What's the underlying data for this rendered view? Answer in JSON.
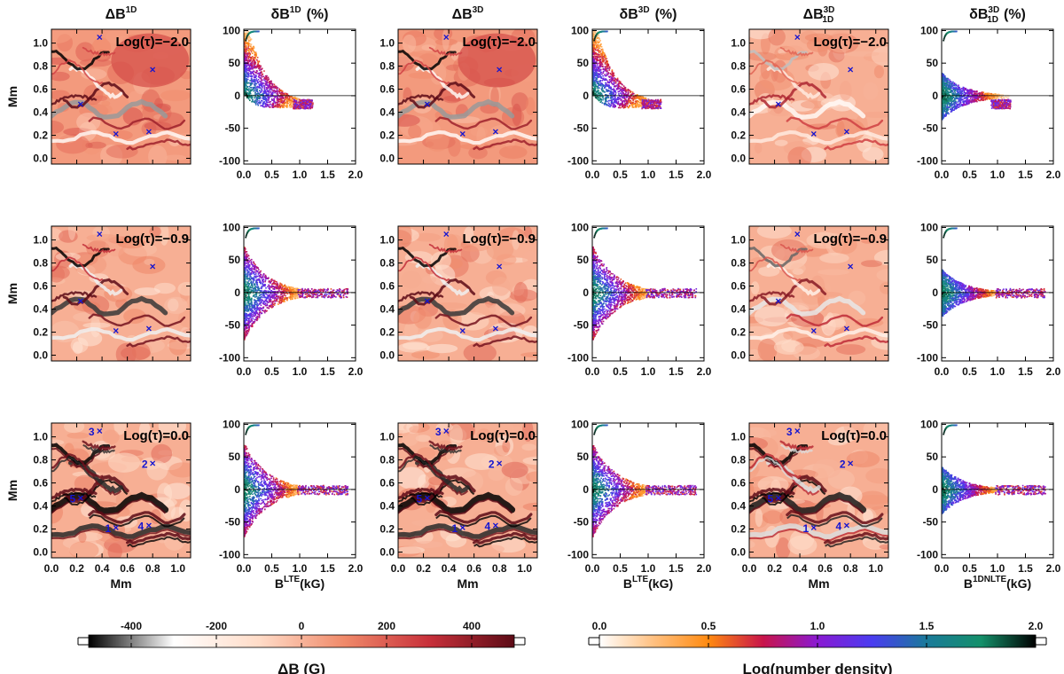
{
  "chart_data": {
    "type": "figure-grid",
    "rows": [
      {
        "tau_label": "Log(τ)=−2.0"
      },
      {
        "tau_label": "Log(τ)=−0.9"
      },
      {
        "tau_label": "Log(τ)=0.0"
      }
    ],
    "columns": [
      {
        "kind": "map",
        "title_main": "ΔB",
        "title_sup": "1D",
        "title_sub": ""
      },
      {
        "kind": "scatter",
        "title_main": "δB",
        "title_sup": "1D",
        "title_sub": "",
        "title_tail": "(%)",
        "xlabel_main": "B",
        "xlabel_sup": "LTE",
        "xlabel_tail": "(kG)"
      },
      {
        "kind": "map",
        "title_main": "ΔB",
        "title_sup": "3D",
        "title_sub": ""
      },
      {
        "kind": "scatter",
        "title_main": "δB",
        "title_sup": "3D",
        "title_sub": "",
        "title_tail": "(%)",
        "xlabel_main": "B",
        "xlabel_sup": "LTE",
        "xlabel_tail": "(kG)"
      },
      {
        "kind": "map",
        "title_main": "ΔB",
        "title_sup": "3D",
        "title_sub": "1D",
        "title_tail": ""
      },
      {
        "kind": "scatter",
        "title_main": "δB",
        "title_sup": "3D",
        "title_sub": "1D",
        "title_tail": "(%)",
        "xlabel_main": "B",
        "xlabel_sup": "1DNLTE",
        "xlabel_tail": "(kG)"
      }
    ],
    "map_axes": {
      "xlabel": "Mm",
      "ylabel": "Mm",
      "xlim": [
        0.0,
        1.1
      ],
      "ylim": [
        -0.05,
        1.12
      ],
      "xticks": [
        "0.0",
        "0.2",
        "0.4",
        "0.6",
        "0.8",
        "1.0"
      ],
      "yticks": [
        "0.0",
        "0.2",
        "0.4",
        "0.6",
        "0.8",
        "1.0"
      ],
      "yvals": [
        0.0,
        0.2,
        0.4,
        0.6,
        0.8,
        1.0
      ]
    },
    "scatter_axes": {
      "xlim": [
        0.0,
        2.0
      ],
      "ylim": [
        -105,
        102
      ],
      "xticks": [
        "0.0",
        "0.5",
        "1.0",
        "1.5",
        "2.0"
      ],
      "xvals": [
        0.0,
        0.5,
        1.0,
        1.5,
        2.0
      ],
      "yticks": [
        "100",
        "50",
        "0",
        "-50",
        "-100"
      ],
      "yvals": [
        100,
        50,
        0,
        -50,
        -100
      ],
      "zero_line": 0
    },
    "marked_points": [
      {
        "label": "1",
        "x": 0.51,
        "y": 0.21
      },
      {
        "label": "2",
        "x": 0.8,
        "y": 0.77
      },
      {
        "label": "3",
        "x": 0.38,
        "y": 1.05
      },
      {
        "label": "4",
        "x": 0.77,
        "y": 0.23
      },
      {
        "label": "5",
        "x": 0.23,
        "y": 0.47
      }
    ],
    "colorbar_deltaB": {
      "label": "ΔB (G)",
      "range": [
        -500,
        500
      ],
      "ticks": [
        "-400",
        "-200",
        "0",
        "200",
        "400"
      ],
      "tick_values": [
        -400,
        -200,
        0,
        200,
        400
      ],
      "colors": [
        "#000000",
        "#ffffff",
        "#ffdcc8",
        "#f08a6a",
        "#c8303a",
        "#5c0b16"
      ]
    },
    "colorbar_density": {
      "label": "Log(number density)",
      "range": [
        0.0,
        2.0
      ],
      "ticks": [
        "0.0",
        "0.5",
        "1.0",
        "1.5",
        "2.0"
      ],
      "tick_values": [
        0.0,
        0.5,
        1.0,
        1.5,
        2.0
      ],
      "colors": [
        "#ffffff",
        "#ffc080",
        "#ff8a10",
        "#c8144a",
        "#8a1ad2",
        "#4a3cf0",
        "#1a7a9a",
        "#14906a",
        "#000000"
      ]
    },
    "grid": false
  }
}
